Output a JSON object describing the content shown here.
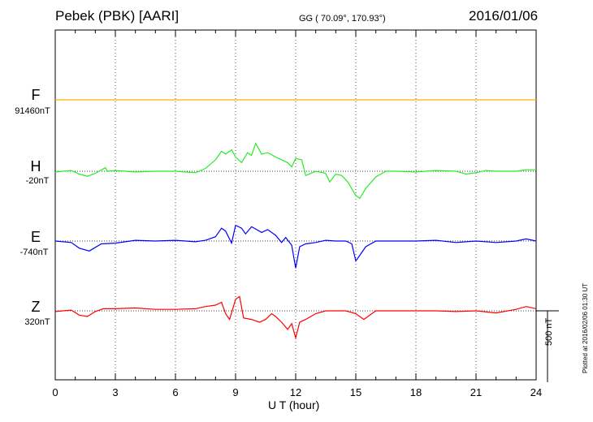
{
  "header": {
    "station": "Pebek (PBK)  [AARI]",
    "coords": "GG ( 70.09°, 170.93°)",
    "date": "2016/01/06"
  },
  "footer": {
    "plotted": "Plotted at 2016/02/06 01:30 UT"
  },
  "chart_data": {
    "type": "line",
    "title": "Pebek (PBK)  [AARI]",
    "xlabel": "U T (hour)",
    "ylabel": "",
    "xlim": [
      0,
      24
    ],
    "x_ticks": [
      0,
      3,
      6,
      9,
      12,
      15,
      18,
      21,
      24
    ],
    "grid": true,
    "scale_bar": {
      "label": "500 nT",
      "value": 500
    },
    "series": [
      {
        "name": "F",
        "baseline_label": "91460nT",
        "color": "#ffb000",
        "offset": 0,
        "points": [
          [
            0,
            0
          ],
          [
            24,
            0
          ]
        ]
      },
      {
        "name": "H",
        "baseline_label": "-20nT",
        "color": "#22ee22",
        "offset": 0,
        "points": [
          [
            0,
            -5
          ],
          [
            0.8,
            5
          ],
          [
            1.2,
            -20
          ],
          [
            1.6,
            -35
          ],
          [
            2,
            -15
          ],
          [
            2.5,
            25
          ],
          [
            2.6,
            0
          ],
          [
            3,
            5
          ],
          [
            4,
            -5
          ],
          [
            5,
            0
          ],
          [
            6,
            0
          ],
          [
            7,
            -10
          ],
          [
            7.5,
            20
          ],
          [
            8,
            80
          ],
          [
            8.3,
            140
          ],
          [
            8.5,
            120
          ],
          [
            8.8,
            150
          ],
          [
            9,
            100
          ],
          [
            9.3,
            60
          ],
          [
            9.6,
            130
          ],
          [
            9.8,
            110
          ],
          [
            10,
            195
          ],
          [
            10.3,
            120
          ],
          [
            10.6,
            130
          ],
          [
            11,
            100
          ],
          [
            11.3,
            80
          ],
          [
            11.6,
            60
          ],
          [
            11.8,
            30
          ],
          [
            12,
            90
          ],
          [
            12.3,
            80
          ],
          [
            12.5,
            -30
          ],
          [
            13,
            0
          ],
          [
            13.5,
            -15
          ],
          [
            13.7,
            -75
          ],
          [
            14,
            -20
          ],
          [
            14.3,
            -30
          ],
          [
            14.6,
            -75
          ],
          [
            15,
            -170
          ],
          [
            15.2,
            -190
          ],
          [
            15.5,
            -120
          ],
          [
            16,
            -40
          ],
          [
            16.5,
            0
          ],
          [
            17,
            0
          ],
          [
            18,
            -5
          ],
          [
            19,
            5
          ],
          [
            20,
            0
          ],
          [
            20.5,
            -20
          ],
          [
            21,
            -10
          ],
          [
            21.5,
            5
          ],
          [
            22,
            0
          ],
          [
            23,
            0
          ],
          [
            23.5,
            10
          ],
          [
            24,
            10
          ]
        ]
      },
      {
        "name": "E",
        "baseline_label": "-740nT",
        "color": "#0000ff",
        "offset": 0,
        "points": [
          [
            0,
            0
          ],
          [
            0.8,
            -10
          ],
          [
            1.2,
            -50
          ],
          [
            1.7,
            -70
          ],
          [
            2.3,
            -20
          ],
          [
            3,
            -15
          ],
          [
            4,
            5
          ],
          [
            5,
            0
          ],
          [
            6,
            5
          ],
          [
            7,
            -5
          ],
          [
            7.5,
            5
          ],
          [
            8,
            30
          ],
          [
            8.3,
            90
          ],
          [
            8.5,
            70
          ],
          [
            8.8,
            -15
          ],
          [
            9,
            110
          ],
          [
            9.3,
            90
          ],
          [
            9.5,
            50
          ],
          [
            9.8,
            100
          ],
          [
            10.3,
            60
          ],
          [
            10.6,
            80
          ],
          [
            11,
            40
          ],
          [
            11.3,
            -10
          ],
          [
            11.5,
            25
          ],
          [
            11.8,
            -30
          ],
          [
            12,
            -190
          ],
          [
            12.2,
            -40
          ],
          [
            12.5,
            -20
          ],
          [
            13,
            -10
          ],
          [
            13.5,
            5
          ],
          [
            14,
            0
          ],
          [
            14.5,
            0
          ],
          [
            14.8,
            -20
          ],
          [
            15,
            -140
          ],
          [
            15.2,
            -100
          ],
          [
            15.5,
            -40
          ],
          [
            16,
            0
          ],
          [
            17,
            0
          ],
          [
            18,
            0
          ],
          [
            19,
            5
          ],
          [
            20,
            -10
          ],
          [
            21,
            0
          ],
          [
            22,
            -10
          ],
          [
            23,
            0
          ],
          [
            23.5,
            15
          ],
          [
            24,
            0
          ]
        ]
      },
      {
        "name": "Z",
        "baseline_label": "320nT",
        "color": "#ff0000",
        "offset": 0,
        "points": [
          [
            0,
            -5
          ],
          [
            0.8,
            5
          ],
          [
            1.2,
            -30
          ],
          [
            1.6,
            -40
          ],
          [
            2,
            -5
          ],
          [
            2.4,
            15
          ],
          [
            3,
            15
          ],
          [
            4,
            20
          ],
          [
            5,
            10
          ],
          [
            6,
            10
          ],
          [
            7,
            15
          ],
          [
            7.5,
            30
          ],
          [
            8,
            40
          ],
          [
            8.3,
            60
          ],
          [
            8.5,
            -20
          ],
          [
            8.7,
            -60
          ],
          [
            9,
            80
          ],
          [
            9.2,
            100
          ],
          [
            9.4,
            -50
          ],
          [
            9.8,
            -60
          ],
          [
            10.2,
            -80
          ],
          [
            10.5,
            -60
          ],
          [
            10.8,
            -20
          ],
          [
            11,
            -40
          ],
          [
            11.3,
            -80
          ],
          [
            11.6,
            -130
          ],
          [
            11.8,
            -90
          ],
          [
            12,
            -190
          ],
          [
            12.2,
            -80
          ],
          [
            12.5,
            -60
          ],
          [
            13,
            -20
          ],
          [
            13.5,
            0
          ],
          [
            14,
            0
          ],
          [
            14.5,
            0
          ],
          [
            15,
            -20
          ],
          [
            15.4,
            -60
          ],
          [
            15.8,
            -20
          ],
          [
            16,
            0
          ],
          [
            17,
            0
          ],
          [
            18,
            0
          ],
          [
            19,
            0
          ],
          [
            20,
            -5
          ],
          [
            21,
            0
          ],
          [
            22,
            -15
          ],
          [
            23,
            10
          ],
          [
            23.5,
            30
          ],
          [
            24,
            15
          ]
        ]
      }
    ]
  }
}
